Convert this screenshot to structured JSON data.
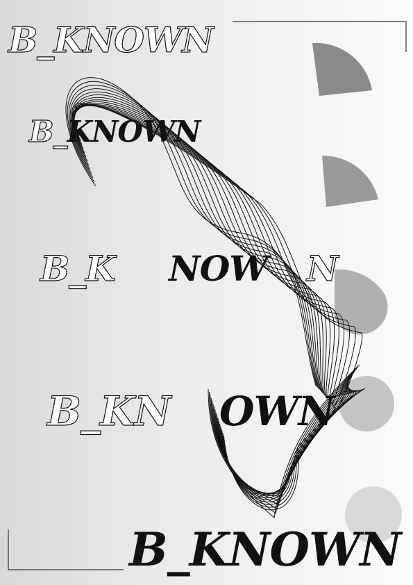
{
  "poster": {
    "line1": {
      "outline": "B_KNOWN"
    },
    "line2": {
      "outline": "B_",
      "solid": "KNOWN"
    },
    "line3": {
      "outline_a": "B_K",
      "solid": "NOW",
      "outline_b": "N"
    },
    "line4": {
      "outline": "B_KN",
      "solid": "OWN"
    },
    "line5": {
      "solid": "B_KNOWN"
    }
  },
  "colors": {
    "ink": "#111111",
    "shape_1": "#8a8a8a",
    "shape_2": "#9a9a9a",
    "shape_3": "#b0b0b0",
    "shape_4": "#c4c4c4",
    "shape_5": "#d8d8d8"
  }
}
